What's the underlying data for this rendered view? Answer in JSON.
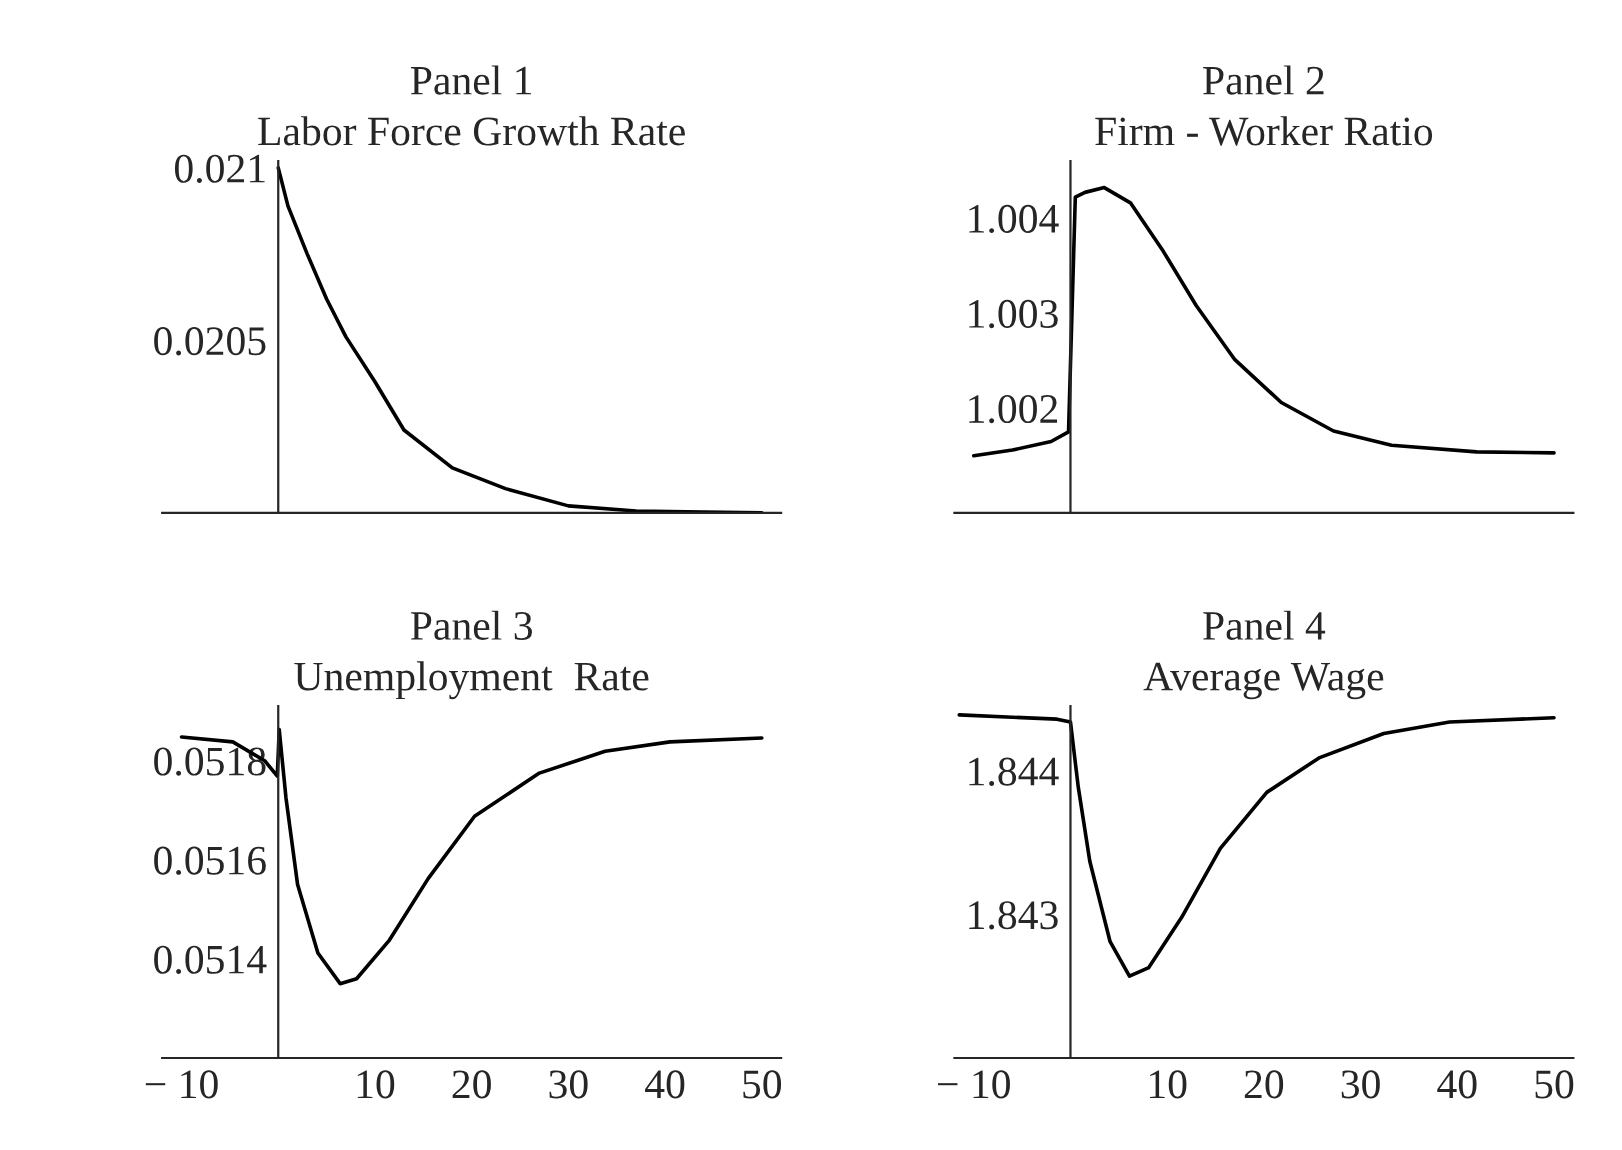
{
  "chart_data": [
    {
      "type": "line",
      "title": "Panel 1",
      "subtitle": "Labor Force Growth Rate",
      "tick_labels": "y",
      "xlim": [
        -12,
        52
      ],
      "ylim": [
        0.02,
        0.02102
      ],
      "xticks": [
        -10,
        10,
        20,
        30,
        40,
        50
      ],
      "yticks": [
        0.021,
        0.0205
      ],
      "series": [
        {
          "color": "#000000",
          "x": [
            0,
            1,
            3,
            5,
            7,
            10,
            13,
            18,
            23.5,
            30,
            37,
            44,
            50
          ],
          "values": [
            0.021,
            0.02089,
            0.02075,
            0.02062,
            0.02051,
            0.02038,
            0.02024,
            0.02013,
            0.02007,
            0.02002,
            0.020005,
            0.020002,
            0.02
          ]
        }
      ]
    },
    {
      "type": "line",
      "title": "Panel 2",
      "subtitle": "Firm - Worker Ratio",
      "tick_labels": "y",
      "xlim": [
        -12,
        52
      ],
      "ylim": [
        1.0009,
        1.0046
      ],
      "xticks": [
        -10,
        10,
        20,
        30,
        40,
        50
      ],
      "yticks": [
        1.004,
        1.003,
        1.002
      ],
      "series": [
        {
          "color": "#000000",
          "x": [
            -10,
            -6,
            -2,
            -0.2,
            0.5,
            1.5,
            3.5,
            6.2,
            9.6,
            13,
            17,
            21.8,
            27.2,
            33.2,
            42,
            50
          ],
          "values": [
            1.0015,
            1.00156,
            1.00165,
            1.00175,
            1.00422,
            1.00427,
            1.00432,
            1.00416,
            1.00365,
            1.00308,
            1.00251,
            1.00206,
            1.00176,
            1.00161,
            1.00154,
            1.00153
          ]
        }
      ]
    },
    {
      "type": "line",
      "title": "Panel 3",
      "subtitle": "Unemployment  Rate",
      "xlim": [
        -12,
        52
      ],
      "ylim": [
        0.0512,
        0.05191
      ],
      "xticks": [
        {
          "value": -10,
          "label": "− 10"
        },
        10,
        20,
        30,
        40,
        50
      ],
      "yticks": [
        0.0518,
        0.0516,
        0.0514
      ],
      "series": [
        {
          "color": "#000000",
          "x": [
            -10,
            -4.7,
            -1.4,
            -0.1,
            0.1,
            0.8,
            2,
            4.1,
            6.4,
            8.1,
            11.5,
            15.5,
            20.3,
            27,
            33.8,
            40.5,
            50
          ],
          "values": [
            0.051848,
            0.051838,
            0.0518,
            0.051769,
            0.051863,
            0.051725,
            0.05155,
            0.051412,
            0.05135,
            0.05136,
            0.051438,
            0.051562,
            0.051688,
            0.051775,
            0.051819,
            0.051838,
            0.051846
          ]
        }
      ]
    },
    {
      "type": "line",
      "title": "Panel 4",
      "subtitle": "Average Wage",
      "xlim": [
        -12,
        52
      ],
      "ylim": [
        1.842,
        1.84445
      ],
      "xticks": [
        {
          "value": -10,
          "label": "− 10"
        },
        10,
        20,
        30,
        40,
        50
      ],
      "yticks": [
        1.844,
        1.843
      ],
      "series": [
        {
          "color": "#000000",
          "x": [
            -11.5,
            -1.4,
            0,
            0.8,
            2,
            4.1,
            6.1,
            8.1,
            11.5,
            15.5,
            20.3,
            25.7,
            32.4,
            39.2,
            50
          ],
          "values": [
            1.84439,
            1.84436,
            1.84434,
            1.84389,
            1.84337,
            1.84281,
            1.84257,
            1.84263,
            1.84298,
            1.84346,
            1.84385,
            1.84409,
            1.84426,
            1.84434,
            1.84437
          ]
        }
      ]
    }
  ]
}
